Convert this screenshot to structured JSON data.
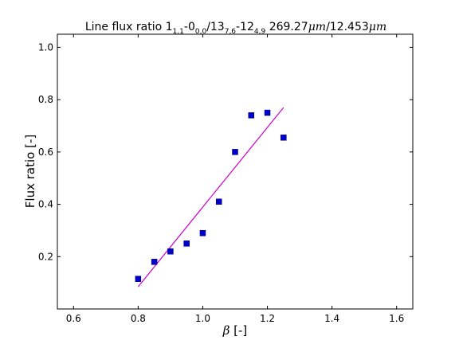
{
  "chart_data": {
    "type": "scatter",
    "title_parts": {
      "prefix": "Line flux ratio 1",
      "sub1": "1,1",
      "mid1": "-0",
      "sub2": "0,0",
      "mid2": "/13",
      "sub3": "7,6",
      "mid3": "-12",
      "sub4": "4,9",
      "mid4": " 269.27",
      "unit1": "μm",
      "mid5": "/12.453",
      "unit2": "μm"
    },
    "xlabel_symbol": "β",
    "xlabel_rest": " [-]",
    "ylabel": "Flux ratio [-]",
    "xlim": [
      0.55,
      1.65
    ],
    "ylim": [
      0.0,
      1.05
    ],
    "xticks": [
      0.6,
      0.8,
      1.0,
      1.2,
      1.4,
      1.6
    ],
    "yticks": [
      0.2,
      0.4,
      0.6,
      0.8,
      1.0
    ],
    "xtick_labels": [
      "0.6",
      "0.8",
      "1.0",
      "1.2",
      "1.4",
      "1.6"
    ],
    "ytick_labels": [
      "0.2",
      "0.4",
      "0.6",
      "0.8",
      "1.0"
    ],
    "points": {
      "x": [
        0.8,
        0.85,
        0.9,
        0.95,
        1.0,
        1.05,
        1.1,
        1.15,
        1.2,
        1.25
      ],
      "y": [
        0.115,
        0.18,
        0.22,
        0.25,
        0.29,
        0.41,
        0.6,
        0.74,
        0.75,
        0.655
      ],
      "color": "#0000cc",
      "marker": "square"
    },
    "fit_line": {
      "x": [
        0.8,
        1.25
      ],
      "y": [
        0.085,
        0.77
      ],
      "color": "#cc00cc"
    },
    "grid": false,
    "legend": "none"
  }
}
